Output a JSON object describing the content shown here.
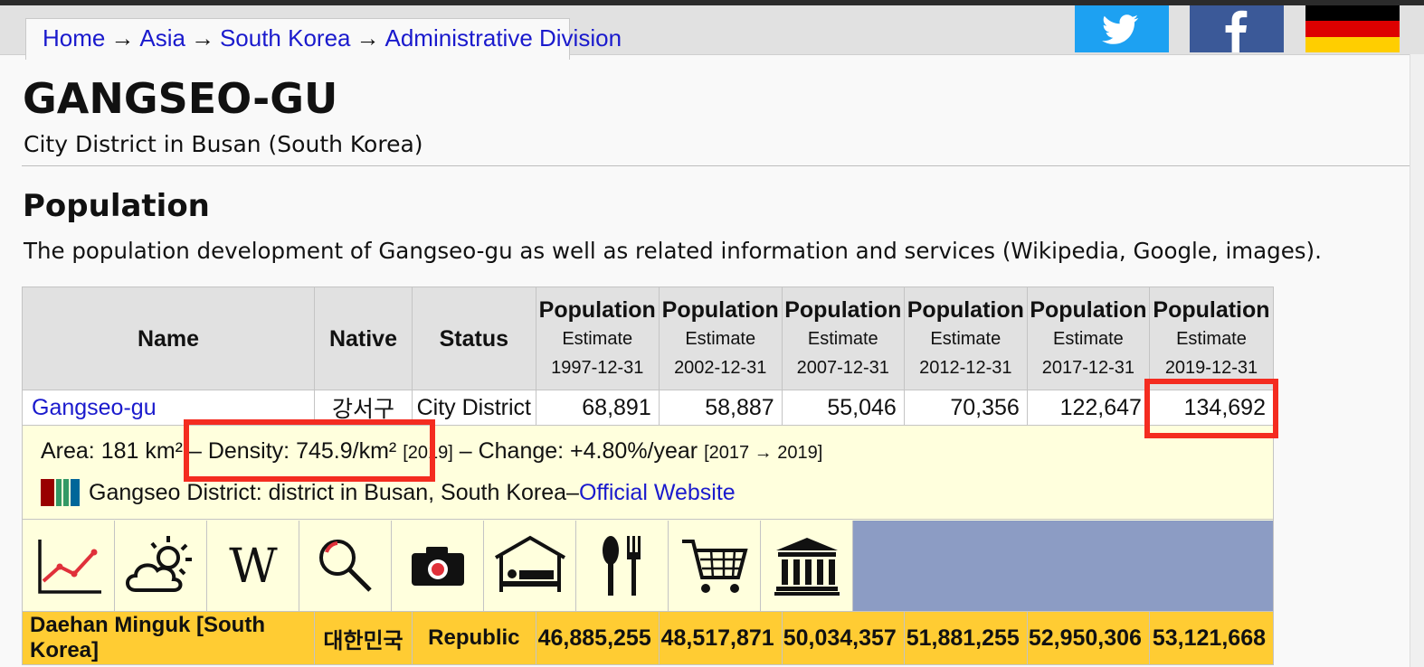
{
  "breadcrumb": {
    "items": [
      "Home",
      "Asia",
      "South Korea",
      "Administrative Division"
    ],
    "separator": "→"
  },
  "social": {
    "twitter_icon": "twitter-icon",
    "facebook_icon": "facebook-icon",
    "language_flag": "german-flag-icon"
  },
  "page": {
    "title": "GANGSEO-GU",
    "subtitle": "City District in Busan (South Korea)",
    "section_title": "Population",
    "description": "The population development of Gangseo-gu as well as related information and services (Wikipedia, Google, images)."
  },
  "table": {
    "headers": {
      "name": "Name",
      "native": "Native",
      "status": "Status",
      "population_columns": [
        {
          "label": "Population",
          "sub": "Estimate",
          "date": "1997-12-31"
        },
        {
          "label": "Population",
          "sub": "Estimate",
          "date": "2002-12-31"
        },
        {
          "label": "Population",
          "sub": "Estimate",
          "date": "2007-12-31"
        },
        {
          "label": "Population",
          "sub": "Estimate",
          "date": "2012-12-31"
        },
        {
          "label": "Population",
          "sub": "Estimate",
          "date": "2017-12-31"
        },
        {
          "label": "Population",
          "sub": "Estimate",
          "date": "2019-12-31"
        }
      ]
    },
    "district_row": {
      "name": "Gangseo-gu",
      "native": "강서구",
      "status": "City District",
      "values": [
        "68,891",
        "58,887",
        "55,046",
        "70,356",
        "122,647",
        "134,692"
      ]
    },
    "info": {
      "area": "Area: 181 km²",
      "sep1": " – ",
      "density": "Density: 745.9/km²",
      "density_year": "[2019]",
      "sep2": " – ",
      "change": "Change: +4.80%/year",
      "change_period": "[2017 → 2019]",
      "wikidata_text": "Gangseo District: district in Busan, South Korea",
      "sep3": " – ",
      "official_link": "Official Website"
    },
    "icons": [
      "population-chart-icon",
      "weather-icon",
      "wikipedia-icon",
      "search-icon",
      "camera-icon",
      "hotel-icon",
      "restaurant-icon",
      "shopping-cart-icon",
      "museum-icon"
    ],
    "country_row": {
      "name": "Daehan Minguk [South Korea]",
      "native": "대한민국",
      "status": "Republic",
      "values": [
        "46,885,255",
        "48,517,871",
        "50,034,357",
        "51,881,255",
        "52,950,306",
        "53,121,668"
      ]
    }
  },
  "colors": {
    "link": "#1a1acd",
    "highlight": "#f42c20",
    "info_bg": "#ffffdd",
    "country_bg": "#ffcc33",
    "icon_fill": "#8c9cc4",
    "twitter": "#1da1f2",
    "facebook": "#3b5998"
  }
}
